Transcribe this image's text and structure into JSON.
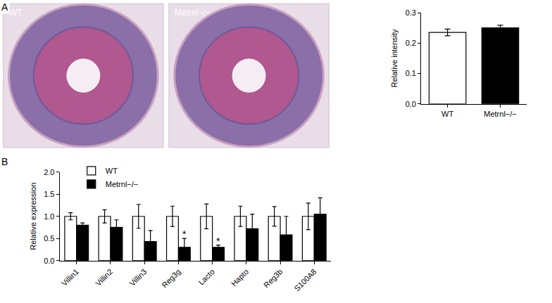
{
  "chart_data": [
    {
      "type": "bar",
      "panel_label": "A",
      "image_labels": [
        "WT",
        "Metrnl−/−"
      ],
      "y_label": "Relative intensity",
      "categories": [
        "WT",
        "Metrnl−/−"
      ],
      "values": [
        0.235,
        0.25
      ],
      "errors": [
        0.011,
        0.009
      ],
      "colors": [
        "#ffffff",
        "#000000"
      ],
      "ylim": [
        0,
        0.3
      ],
      "yticks": [
        {
          "value": 0,
          "label": "0.0"
        },
        0.1,
        0.2,
        0.3
      ],
      "grid": false
    },
    {
      "type": "bar",
      "panel_label": "B",
      "y_label": "Relative expression",
      "categories": [
        "Villin1",
        "Villin2",
        "Villin3",
        "Reg3g",
        "Lacto",
        "Hapto",
        "Reg3b",
        "S100A8"
      ],
      "series": [
        {
          "name": "WT",
          "color": "#ffffff",
          "values": [
            1.0,
            1.0,
            1.0,
            1.0,
            1.0,
            1.0,
            1.0,
            1.0
          ],
          "errors": [
            0.08,
            0.15,
            0.27,
            0.23,
            0.28,
            0.23,
            0.22,
            0.3
          ]
        },
        {
          "name": "Metrnl−/−",
          "color": "#000000",
          "values": [
            0.8,
            0.75,
            0.43,
            0.3,
            0.3,
            0.72,
            0.58,
            1.05
          ],
          "errors": [
            0.05,
            0.17,
            0.25,
            0.2,
            0.05,
            0.33,
            0.42,
            0.37
          ]
        }
      ],
      "annotations": [
        {
          "category": "Reg3g",
          "series": "Metrnl−/−",
          "text": "*"
        },
        {
          "category": "Lacto",
          "series": "Metrnl−/−",
          "text": "*"
        }
      ],
      "ylim": [
        0,
        2.0
      ],
      "yticks": [
        {
          "value": 0,
          "label": "0.0"
        },
        0.5,
        {
          "value": 1,
          "label": "1.0"
        },
        1.5,
        {
          "value": 2,
          "label": "2.0"
        }
      ],
      "legend": "upper left",
      "grid": false
    }
  ]
}
